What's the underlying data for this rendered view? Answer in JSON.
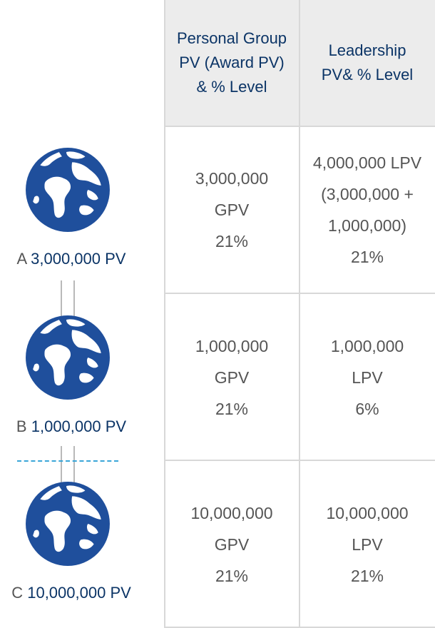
{
  "header": {
    "col1": [
      "Personal Group",
      "PV (Award PV)",
      "& % Level"
    ],
    "col2": [
      "Leadership",
      "PV& % Level"
    ]
  },
  "tiers": [
    {
      "letter": "A",
      "pv": "3,000,000 PV"
    },
    {
      "letter": "B",
      "pv": "1,000,000 PV"
    },
    {
      "letter": "C",
      "pv": "10,000,000 PV"
    }
  ],
  "rows": [
    {
      "gpv": [
        "3,000,000",
        "GPV",
        "21%"
      ],
      "lpv": [
        "4,000,000 LPV",
        "(3,000,000 +",
        "1,000,000)",
        "21%"
      ]
    },
    {
      "gpv": [
        "1,000,000",
        "GPV",
        "21%"
      ],
      "lpv": [
        "1,000,000",
        "LPV",
        "6%"
      ]
    },
    {
      "gpv": [
        "10,000,000",
        "GPV",
        "21%"
      ],
      "lpv": [
        "10,000,000",
        "LPV",
        "21%"
      ]
    }
  ],
  "colors": {
    "ocean": "#1f4f9c",
    "land": "#ffffff",
    "label": "#0b3466",
    "dash": "#3aa6d8"
  }
}
